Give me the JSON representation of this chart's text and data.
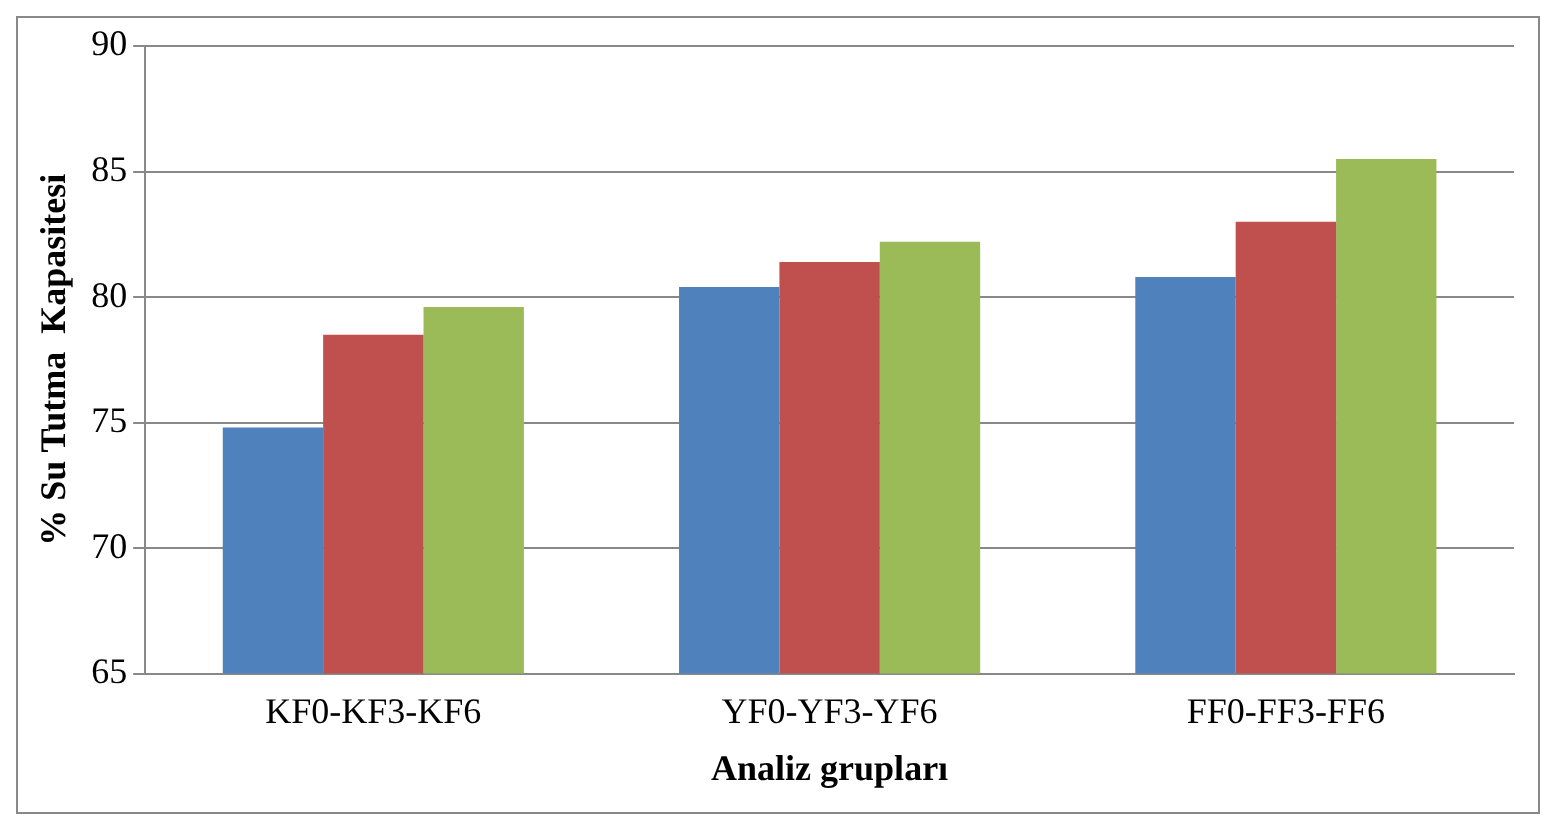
{
  "chart_data": {
    "type": "bar",
    "xlabel": "Analiz grupları",
    "ylabel": "% Su Tutma  Kapasitesi",
    "categories": [
      "KF0-KF3-KF6",
      "YF0-YF3-YF6",
      "FF0-FF3-FF6"
    ],
    "series": [
      {
        "color": "#4f81bd",
        "values": [
          74.8,
          80.4,
          80.8
        ]
      },
      {
        "color": "#c0504d",
        "values": [
          78.5,
          81.4,
          83.0
        ]
      },
      {
        "color": "#9bbb59",
        "values": [
          79.6,
          82.2,
          85.5
        ]
      }
    ],
    "ylim": [
      65,
      90
    ],
    "yticks": [
      65,
      70,
      75,
      80,
      85,
      90
    ],
    "grid": "y",
    "legend": false
  }
}
